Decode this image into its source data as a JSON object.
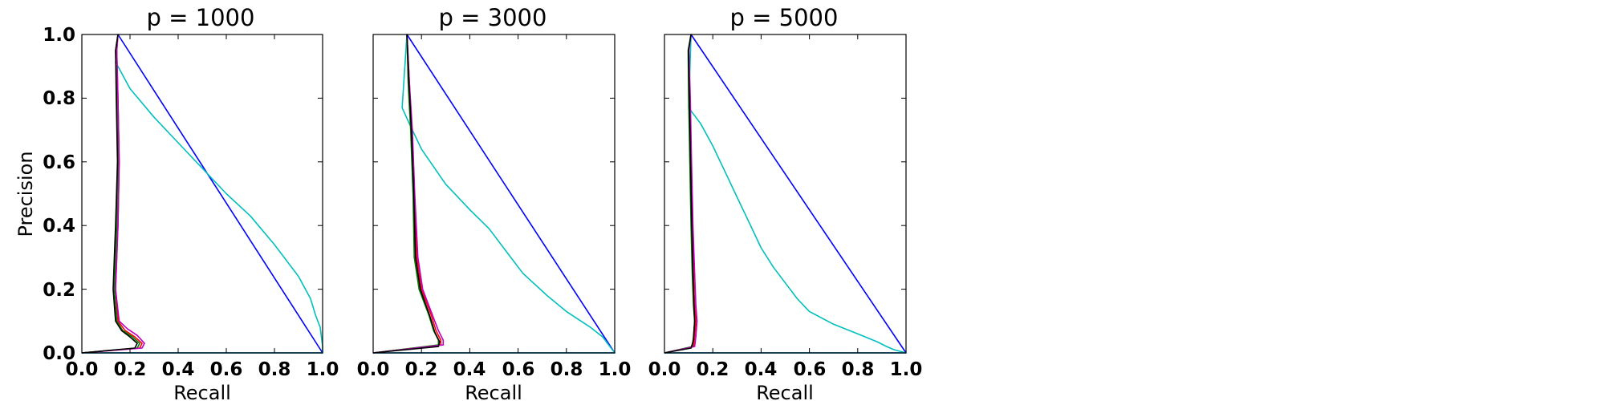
{
  "chart_data": [
    {
      "type": "line",
      "title": "p = 1000",
      "xlabel": "Recall",
      "ylabel": "Precision",
      "xlim": [
        0.0,
        1.0
      ],
      "ylim": [
        0.0,
        1.0
      ],
      "xticks": [
        "0.0",
        "0.2",
        "0.4",
        "0.6",
        "0.8",
        "1.0"
      ],
      "yticks": [
        "0.0",
        "0.2",
        "0.4",
        "0.6",
        "0.8",
        "1.0"
      ],
      "grid": false,
      "series": [
        {
          "color": "#0000ff",
          "points": [
            [
              0.0,
              0.0
            ],
            [
              1.0,
              0.0
            ],
            [
              0.15,
              1.0
            ],
            [
              1.0,
              0.0
            ]
          ]
        },
        {
          "color": "#00bfbf",
          "points": [
            [
              0.0,
              0.0
            ],
            [
              1.0,
              0.0
            ],
            [
              1.0,
              0.02
            ],
            [
              0.99,
              0.08
            ],
            [
              0.97,
              0.12
            ],
            [
              0.95,
              0.17
            ],
            [
              0.9,
              0.24
            ],
            [
              0.8,
              0.34
            ],
            [
              0.7,
              0.43
            ],
            [
              0.6,
              0.5
            ],
            [
              0.5,
              0.58
            ],
            [
              0.4,
              0.66
            ],
            [
              0.3,
              0.74
            ],
            [
              0.2,
              0.83
            ],
            [
              0.15,
              0.9
            ],
            [
              0.14,
              0.91
            ],
            [
              0.15,
              1.0
            ]
          ]
        },
        {
          "color": "#ff0000",
          "points": [
            [
              0.0,
              0.0
            ],
            [
              0.24,
              0.015
            ],
            [
              0.25,
              0.03
            ],
            [
              0.22,
              0.05
            ],
            [
              0.18,
              0.07
            ],
            [
              0.15,
              0.1
            ],
            [
              0.14,
              0.2
            ],
            [
              0.15,
              0.4
            ],
            [
              0.155,
              0.6
            ],
            [
              0.15,
              0.8
            ],
            [
              0.145,
              0.95
            ],
            [
              0.15,
              1.0
            ]
          ]
        },
        {
          "color": "#008000",
          "points": [
            [
              0.0,
              0.0
            ],
            [
              0.23,
              0.015
            ],
            [
              0.24,
              0.03
            ],
            [
              0.21,
              0.05
            ],
            [
              0.17,
              0.07
            ],
            [
              0.145,
              0.1
            ],
            [
              0.135,
              0.2
            ],
            [
              0.145,
              0.4
            ],
            [
              0.15,
              0.6
            ],
            [
              0.145,
              0.8
            ],
            [
              0.14,
              0.95
            ],
            [
              0.15,
              1.0
            ]
          ]
        },
        {
          "color": "#bf00bf",
          "points": [
            [
              0.0,
              0.0
            ],
            [
              0.25,
              0.015
            ],
            [
              0.26,
              0.03
            ],
            [
              0.23,
              0.055
            ],
            [
              0.19,
              0.075
            ],
            [
              0.155,
              0.1
            ],
            [
              0.14,
              0.2
            ],
            [
              0.15,
              0.4
            ],
            [
              0.155,
              0.6
            ],
            [
              0.15,
              0.8
            ],
            [
              0.145,
              0.95
            ],
            [
              0.15,
              1.0
            ]
          ]
        },
        {
          "color": "#000000",
          "points": [
            [
              0.0,
              0.0
            ],
            [
              0.22,
              0.015
            ],
            [
              0.23,
              0.03
            ],
            [
              0.2,
              0.05
            ],
            [
              0.165,
              0.07
            ],
            [
              0.14,
              0.1
            ],
            [
              0.13,
              0.2
            ],
            [
              0.14,
              0.4
            ],
            [
              0.148,
              0.6
            ],
            [
              0.143,
              0.8
            ],
            [
              0.14,
              0.95
            ],
            [
              0.15,
              1.0
            ]
          ]
        }
      ]
    },
    {
      "type": "line",
      "title": "p = 3000",
      "xlabel": "Recall",
      "ylabel": "",
      "xlim": [
        0.0,
        1.0
      ],
      "ylim": [
        0.0,
        1.0
      ],
      "xticks": [
        "0.0",
        "0.2",
        "0.4",
        "0.6",
        "0.8",
        "1.0"
      ],
      "yticks": [],
      "grid": false,
      "series": [
        {
          "color": "#0000ff",
          "points": [
            [
              0.0,
              0.0
            ],
            [
              1.0,
              0.0
            ],
            [
              0.14,
              1.0
            ],
            [
              1.0,
              0.0
            ]
          ]
        },
        {
          "color": "#00bfbf",
          "points": [
            [
              0.0,
              0.0
            ],
            [
              1.0,
              0.0
            ],
            [
              0.98,
              0.02
            ],
            [
              0.95,
              0.05
            ],
            [
              0.9,
              0.08
            ],
            [
              0.8,
              0.13
            ],
            [
              0.72,
              0.18
            ],
            [
              0.62,
              0.25
            ],
            [
              0.55,
              0.32
            ],
            [
              0.48,
              0.39
            ],
            [
              0.4,
              0.45
            ],
            [
              0.3,
              0.53
            ],
            [
              0.2,
              0.64
            ],
            [
              0.15,
              0.72
            ],
            [
              0.12,
              0.77
            ],
            [
              0.14,
              1.0
            ]
          ]
        },
        {
          "color": "#ff0000",
          "points": [
            [
              0.0,
              0.0
            ],
            [
              0.28,
              0.025
            ],
            [
              0.28,
              0.04
            ],
            [
              0.26,
              0.07
            ],
            [
              0.24,
              0.12
            ],
            [
              0.2,
              0.2
            ],
            [
              0.18,
              0.3
            ],
            [
              0.17,
              0.5
            ],
            [
              0.16,
              0.7
            ],
            [
              0.15,
              0.85
            ],
            [
              0.14,
              1.0
            ]
          ]
        },
        {
          "color": "#008000",
          "points": [
            [
              0.0,
              0.0
            ],
            [
              0.27,
              0.025
            ],
            [
              0.27,
              0.04
            ],
            [
              0.25,
              0.07
            ],
            [
              0.23,
              0.12
            ],
            [
              0.19,
              0.2
            ],
            [
              0.17,
              0.3
            ],
            [
              0.165,
              0.5
            ],
            [
              0.155,
              0.7
            ],
            [
              0.145,
              0.85
            ],
            [
              0.14,
              1.0
            ]
          ]
        },
        {
          "color": "#bf00bf",
          "points": [
            [
              0.0,
              0.0
            ],
            [
              0.29,
              0.025
            ],
            [
              0.29,
              0.04
            ],
            [
              0.27,
              0.07
            ],
            [
              0.245,
              0.12
            ],
            [
              0.205,
              0.2
            ],
            [
              0.185,
              0.3
            ],
            [
              0.172,
              0.5
            ],
            [
              0.162,
              0.7
            ],
            [
              0.15,
              0.85
            ],
            [
              0.14,
              1.0
            ]
          ]
        },
        {
          "color": "#000000",
          "points": [
            [
              0.0,
              0.0
            ],
            [
              0.27,
              0.02
            ],
            [
              0.275,
              0.035
            ],
            [
              0.255,
              0.065
            ],
            [
              0.235,
              0.115
            ],
            [
              0.195,
              0.2
            ],
            [
              0.175,
              0.3
            ],
            [
              0.168,
              0.5
            ],
            [
              0.158,
              0.7
            ],
            [
              0.148,
              0.85
            ],
            [
              0.14,
              1.0
            ]
          ]
        }
      ]
    },
    {
      "type": "line",
      "title": "p = 5000",
      "xlabel": "Recall",
      "ylabel": "",
      "xlim": [
        0.0,
        1.0
      ],
      "ylim": [
        0.0,
        1.0
      ],
      "xticks": [
        "0.0",
        "0.2",
        "0.4",
        "0.6",
        "0.8",
        "1.0"
      ],
      "yticks": [],
      "grid": false,
      "series": [
        {
          "color": "#0000ff",
          "points": [
            [
              0.0,
              0.0
            ],
            [
              1.0,
              0.0
            ],
            [
              0.11,
              1.0
            ],
            [
              1.0,
              0.0
            ]
          ]
        },
        {
          "color": "#00bfbf",
          "points": [
            [
              0.0,
              0.0
            ],
            [
              1.0,
              0.0
            ],
            [
              0.95,
              0.01
            ],
            [
              0.92,
              0.02
            ],
            [
              0.88,
              0.035
            ],
            [
              0.8,
              0.06
            ],
            [
              0.7,
              0.09
            ],
            [
              0.6,
              0.13
            ],
            [
              0.55,
              0.17
            ],
            [
              0.5,
              0.22
            ],
            [
              0.45,
              0.27
            ],
            [
              0.4,
              0.33
            ],
            [
              0.35,
              0.41
            ],
            [
              0.3,
              0.49
            ],
            [
              0.25,
              0.57
            ],
            [
              0.2,
              0.65
            ],
            [
              0.15,
              0.72
            ],
            [
              0.1,
              0.77
            ],
            [
              0.11,
              1.0
            ]
          ]
        },
        {
          "color": "#ff0000",
          "points": [
            [
              0.0,
              0.0
            ],
            [
              0.12,
              0.02
            ],
            [
              0.125,
              0.05
            ],
            [
              0.13,
              0.1
            ],
            [
              0.125,
              0.15
            ],
            [
              0.12,
              0.25
            ],
            [
              0.115,
              0.4
            ],
            [
              0.11,
              0.6
            ],
            [
              0.105,
              0.8
            ],
            [
              0.1,
              0.95
            ],
            [
              0.11,
              1.0
            ]
          ]
        },
        {
          "color": "#008000",
          "points": [
            [
              0.0,
              0.0
            ],
            [
              0.115,
              0.02
            ],
            [
              0.12,
              0.05
            ],
            [
              0.125,
              0.1
            ],
            [
              0.12,
              0.15
            ],
            [
              0.115,
              0.25
            ],
            [
              0.11,
              0.4
            ],
            [
              0.105,
              0.6
            ],
            [
              0.1,
              0.8
            ],
            [
              0.098,
              0.95
            ],
            [
              0.11,
              1.0
            ]
          ]
        },
        {
          "color": "#bf00bf",
          "points": [
            [
              0.0,
              0.0
            ],
            [
              0.125,
              0.02
            ],
            [
              0.13,
              0.05
            ],
            [
              0.135,
              0.1
            ],
            [
              0.13,
              0.15
            ],
            [
              0.125,
              0.25
            ],
            [
              0.118,
              0.4
            ],
            [
              0.112,
              0.6
            ],
            [
              0.107,
              0.8
            ],
            [
              0.101,
              0.95
            ],
            [
              0.11,
              1.0
            ]
          ]
        },
        {
          "color": "#000000",
          "points": [
            [
              0.0,
              0.0
            ],
            [
              0.11,
              0.015
            ],
            [
              0.12,
              0.04
            ],
            [
              0.125,
              0.1
            ],
            [
              0.122,
              0.15
            ],
            [
              0.118,
              0.25
            ],
            [
              0.113,
              0.4
            ],
            [
              0.108,
              0.6
            ],
            [
              0.103,
              0.8
            ],
            [
              0.099,
              0.95
            ],
            [
              0.11,
              1.0
            ]
          ]
        }
      ]
    }
  ]
}
